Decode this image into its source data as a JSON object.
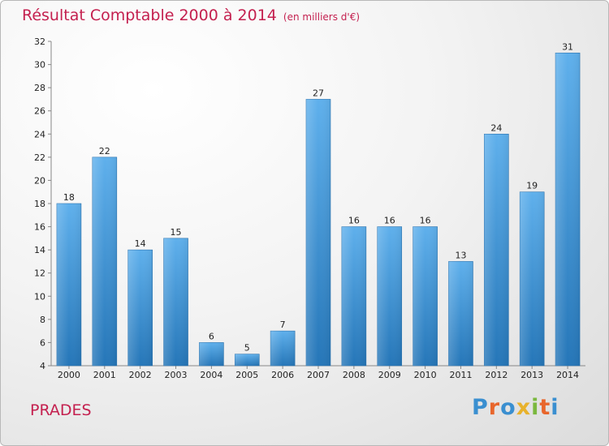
{
  "chart_data": {
    "type": "bar",
    "title": "Résultat Comptable 2000 à 2014",
    "subtitle": "(en milliers d'€)",
    "categories": [
      "2000",
      "2001",
      "2002",
      "2003",
      "2004",
      "2005",
      "2006",
      "2007",
      "2008",
      "2009",
      "2010",
      "2011",
      "2012",
      "2013",
      "2014"
    ],
    "values": [
      18,
      22,
      14,
      15,
      6,
      5,
      7,
      27,
      16,
      16,
      16,
      13,
      24,
      19,
      31
    ],
    "ylim": [
      4,
      32
    ],
    "yticks": [
      4,
      6,
      8,
      10,
      12,
      14,
      16,
      18,
      20,
      22,
      24,
      26,
      28,
      30,
      32
    ],
    "xlabel": "",
    "ylabel": "",
    "grid": false,
    "bar_color": "#3d8fd4"
  },
  "footer": {
    "place": "PRADES",
    "logo_text": "Proxiti",
    "logo_colors": [
      "#3a8fd0",
      "#e8662c",
      "#3a8fd0",
      "#e8b22c",
      "#7ab83e",
      "#e8662c",
      "#3a8fd0"
    ]
  },
  "colors": {
    "title": "#c4204f"
  }
}
